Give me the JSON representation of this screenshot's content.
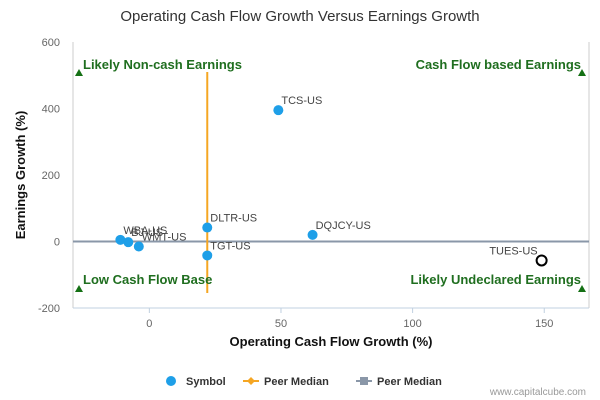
{
  "chart_data": {
    "type": "scatter",
    "title": "Operating Cash Flow Growth Versus Earnings Growth",
    "xlabel": "Operating Cash Flow Growth (%)",
    "ylabel": "Earnings Growth (%)",
    "xlim": [
      -29,
      167
    ],
    "ylim": [
      -200,
      600
    ],
    "x_ticks": [
      "0",
      "50",
      "100",
      "150"
    ],
    "y_ticks": [
      "600",
      "400",
      "200",
      "0",
      "-200"
    ],
    "x_tick_values": [
      0,
      50,
      100,
      150
    ],
    "y_tick_values": [
      600,
      400,
      200,
      0,
      -200
    ],
    "grid": false,
    "points": [
      {
        "label": "TCS-US",
        "x": 49,
        "y": 395,
        "highlight": false
      },
      {
        "label": "DLTR-US",
        "x": 22,
        "y": 42,
        "highlight": false
      },
      {
        "label": "DQJCY-US",
        "x": 62,
        "y": 20,
        "highlight": false
      },
      {
        "label": "WBA-US",
        "x": -11,
        "y": 5,
        "highlight": false
      },
      {
        "label": "BJ-US",
        "x": -8,
        "y": -2,
        "highlight": false
      },
      {
        "label": "WMT-US",
        "x": -4,
        "y": -15,
        "highlight": false
      },
      {
        "label": "TGT-US",
        "x": 22,
        "y": -42,
        "highlight": false
      },
      {
        "label": "TUES-US",
        "x": 149,
        "y": -57,
        "highlight": true
      }
    ],
    "peer_median_x": 22,
    "peer_median_y": 0,
    "quadrant_labels": {
      "top_left": "Likely Non-cash Earnings",
      "top_right": "Cash Flow based Earnings",
      "bottom_left": "Low Cash Flow Base",
      "bottom_right": "Likely Undeclared Earnings"
    },
    "legend": {
      "placement": "bottom",
      "items": [
        "Symbol",
        "Peer Median",
        "Peer Median"
      ]
    },
    "colors": {
      "point": "#1e9fe8",
      "highlight_stroke": "#000000",
      "vertical_median": "#f5a623",
      "horizontal_median": "#8a97a8",
      "quadrant_text": "#1f6e1f",
      "quadrant_marker": "#147014"
    }
  },
  "credit": "www.capitalcube.com"
}
